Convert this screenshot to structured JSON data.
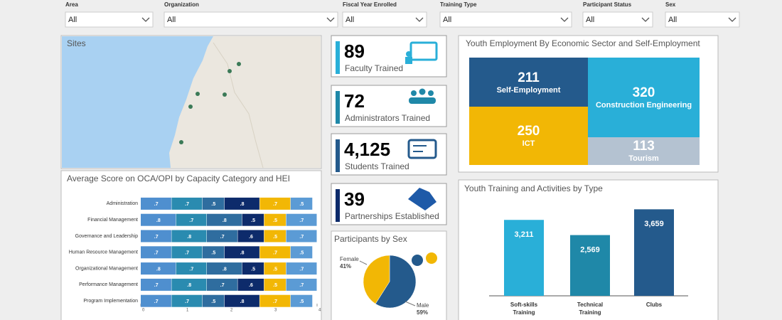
{
  "filters": [
    {
      "label": "Area",
      "value": "All"
    },
    {
      "label": "Organization",
      "value": "All"
    },
    {
      "label": "Fiscal Year Enrolled",
      "value": "All"
    },
    {
      "label": "Training Type",
      "value": "All"
    },
    {
      "label": "Participant Status",
      "value": "All"
    },
    {
      "label": "Sex",
      "value": "All"
    }
  ],
  "map": {
    "title": "Sites"
  },
  "kpis": [
    {
      "value": "89",
      "label": "Faculty Trained"
    },
    {
      "value": "72",
      "label": "Administrators Trained"
    },
    {
      "value": "4,125",
      "label": "Students Trained"
    },
    {
      "value": "39",
      "label": "Partnerships Established"
    }
  ],
  "chart_data": [
    {
      "type": "bar",
      "orientation": "horizontal",
      "stacked": true,
      "title": "Average Score on OCA/OPI by Capacity Category and HEI",
      "categories": [
        "Administration",
        "Financial Management",
        "Governance and Leadership",
        "Human Resource Management",
        "Organizational Management",
        "Performance Management",
        "Program Implementation"
      ],
      "series": [
        {
          "color": "#4f8fcf",
          "values": [
            0.7,
            0.8,
            0.7,
            0.7,
            0.8,
            0.7,
            0.7
          ],
          "value_labels": [
            ".7",
            ".8",
            ".7",
            ".7",
            ".8",
            ".7",
            ".7"
          ]
        },
        {
          "color": "#2a8bb0",
          "values": [
            0.7,
            0.7,
            0.8,
            0.7,
            0.7,
            0.8,
            0.7
          ],
          "value_labels": [
            ".7",
            ".7",
            ".8",
            ".7",
            ".7",
            ".8",
            ".7"
          ]
        },
        {
          "color": "#2f6d9f",
          "values": [
            0.5,
            0.8,
            0.7,
            0.5,
            0.8,
            0.7,
            0.5
          ],
          "value_labels": [
            ".5",
            ".8",
            ".7",
            ".5",
            ".8",
            ".7",
            ".5"
          ]
        },
        {
          "color": "#0d2b6b",
          "values": [
            0.8,
            0.5,
            0.6,
            0.8,
            0.5,
            0.6,
            0.8
          ],
          "value_labels": [
            ".8",
            ".5",
            ".6",
            ".8",
            ".5",
            ".6",
            ".8"
          ]
        },
        {
          "color": "#f2b705",
          "values": [
            0.7,
            0.5,
            0.5,
            0.7,
            0.5,
            0.5,
            0.7
          ],
          "value_labels": [
            ".7",
            ".5",
            ".5",
            ".7",
            ".5",
            ".5",
            ".7"
          ]
        },
        {
          "color": "#5b9bd5",
          "values": [
            0.5,
            0.7,
            0.7,
            0.5,
            0.7,
            0.7,
            0.5
          ],
          "value_labels": [
            ".5",
            ".7",
            ".7",
            ".5",
            ".7",
            ".7",
            ".5"
          ]
        }
      ],
      "xlim": [
        0,
        4
      ],
      "xticks": [
        0,
        1,
        2,
        3,
        4
      ]
    },
    {
      "type": "treemap",
      "title": "Youth Employment By Economic Sector and Self-Employment",
      "categories": [
        "Self-Employment",
        "ICT",
        "Construction Engineering",
        "Tourism"
      ],
      "values": [
        211,
        250,
        320,
        113
      ],
      "colors": [
        "#245a8c",
        "#f2b705",
        "#29afd8",
        "#b4c2d1"
      ]
    },
    {
      "type": "pie",
      "title": "Participants by Sex",
      "categories": [
        "Male",
        "Female"
      ],
      "values": [
        59,
        41
      ],
      "value_labels": [
        "59%",
        "41%"
      ],
      "colors": [
        "#245a8c",
        "#f2b705"
      ]
    },
    {
      "type": "bar",
      "title": "Youth Training and Activities by Type",
      "categories": [
        "Soft-skills Training",
        "Technical Training",
        "Clubs"
      ],
      "values": [
        3211,
        2569,
        3659
      ],
      "value_labels": [
        "3,211",
        "2,569",
        "3,659"
      ],
      "colors": [
        "#29afd8",
        "#1f88a8",
        "#245a8c"
      ],
      "ylim": [
        0,
        4000
      ]
    }
  ]
}
